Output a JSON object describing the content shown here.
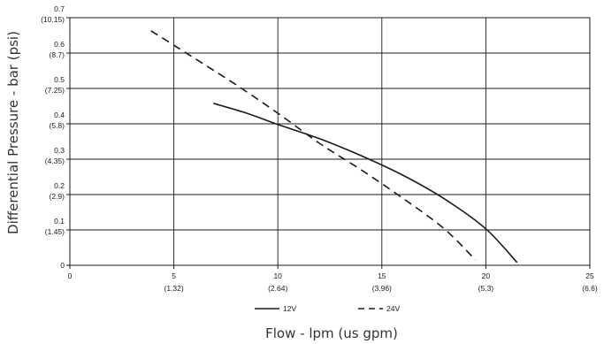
{
  "chart_data": {
    "type": "line",
    "xlabel": "Flow - lpm (us gpm)",
    "ylabel": "Differential Pressure - bar (psi)",
    "xlim": [
      0,
      25
    ],
    "ylim": [
      0,
      0.7
    ],
    "grid": true,
    "legend_position": "bottom-center",
    "x_ticks": [
      {
        "value": 0,
        "label": "0",
        "sub": ""
      },
      {
        "value": 5,
        "label": "5",
        "sub": "(1.32)"
      },
      {
        "value": 10,
        "label": "10",
        "sub": "(2.64)"
      },
      {
        "value": 15,
        "label": "15",
        "sub": "(3.96)"
      },
      {
        "value": 20,
        "label": "20",
        "sub": "(5.3)"
      },
      {
        "value": 25,
        "label": "25",
        "sub": "(6.6)"
      }
    ],
    "y_ticks": [
      {
        "value": 0,
        "label": "0",
        "sub": ""
      },
      {
        "value": 0.1,
        "label": "0.1",
        "sub": "(1.45)"
      },
      {
        "value": 0.2,
        "label": "0.2",
        "sub": "(2.9)"
      },
      {
        "value": 0.3,
        "label": "0.3",
        "sub": "(4.35)"
      },
      {
        "value": 0.4,
        "label": "0.4",
        "sub": "(5.8)"
      },
      {
        "value": 0.5,
        "label": "0.5",
        "sub": "(7.25)"
      },
      {
        "value": 0.6,
        "label": "0.6",
        "sub": "(8.7)"
      },
      {
        "value": 0.7,
        "label": "0.7",
        "sub": "(10.15)"
      }
    ],
    "series": [
      {
        "name": "12V",
        "style": "solid",
        "color": "#1a1a1a",
        "x": [
          6.9,
          8.5,
          10.0,
          12.0,
          14.0,
          16.0,
          18.0,
          20.0,
          21.5
        ],
        "y": [
          0.458,
          0.43,
          0.398,
          0.358,
          0.31,
          0.255,
          0.188,
          0.103,
          0.008
        ]
      },
      {
        "name": "24V",
        "style": "dashed",
        "color": "#1a1a1a",
        "x": [
          3.9,
          6.0,
          8.0,
          10.0,
          12.0,
          14.0,
          16.0,
          18.0,
          19.5
        ],
        "y": [
          0.663,
          0.585,
          0.51,
          0.43,
          0.345,
          0.27,
          0.19,
          0.103,
          0.015
        ]
      }
    ]
  }
}
